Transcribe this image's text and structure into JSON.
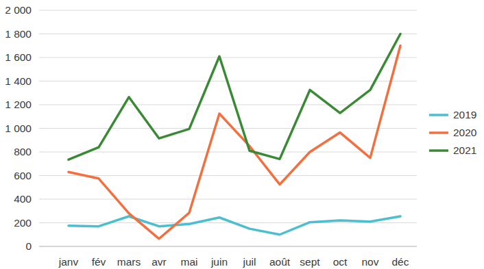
{
  "chart_data": {
    "type": "line",
    "categories": [
      "janv",
      "fév",
      "mars",
      "avr",
      "mai",
      "juin",
      "juil",
      "août",
      "sept",
      "oct",
      "nov",
      "déc"
    ],
    "series": [
      {
        "name": "2019",
        "color": "#4bbfcf",
        "values": [
          175,
          170,
          255,
          170,
          190,
          245,
          150,
          100,
          205,
          220,
          210,
          255
        ]
      },
      {
        "name": "2020",
        "color": "#f2703f",
        "values": [
          630,
          575,
          280,
          65,
          285,
          1125,
          850,
          525,
          800,
          965,
          750,
          1700
        ]
      },
      {
        "name": "2021",
        "color": "#3a8a35",
        "values": [
          735,
          840,
          1265,
          915,
          995,
          1610,
          810,
          740,
          1325,
          1130,
          1325,
          1800
        ]
      }
    ],
    "ylim": [
      0,
      2000
    ],
    "yticks": [
      0,
      200,
      400,
      600,
      800,
      {
        "value": 1000,
        "label": "1 000"
      },
      {
        "value": 1200,
        "label": "1 200"
      },
      {
        "value": 1400,
        "label": "1 400"
      },
      {
        "value": 1600,
        "label": "1 600"
      },
      {
        "value": 1800,
        "label": "1 800"
      },
      {
        "value": 2000,
        "label": "2 000"
      }
    ],
    "grid": true,
    "legend": "right"
  }
}
